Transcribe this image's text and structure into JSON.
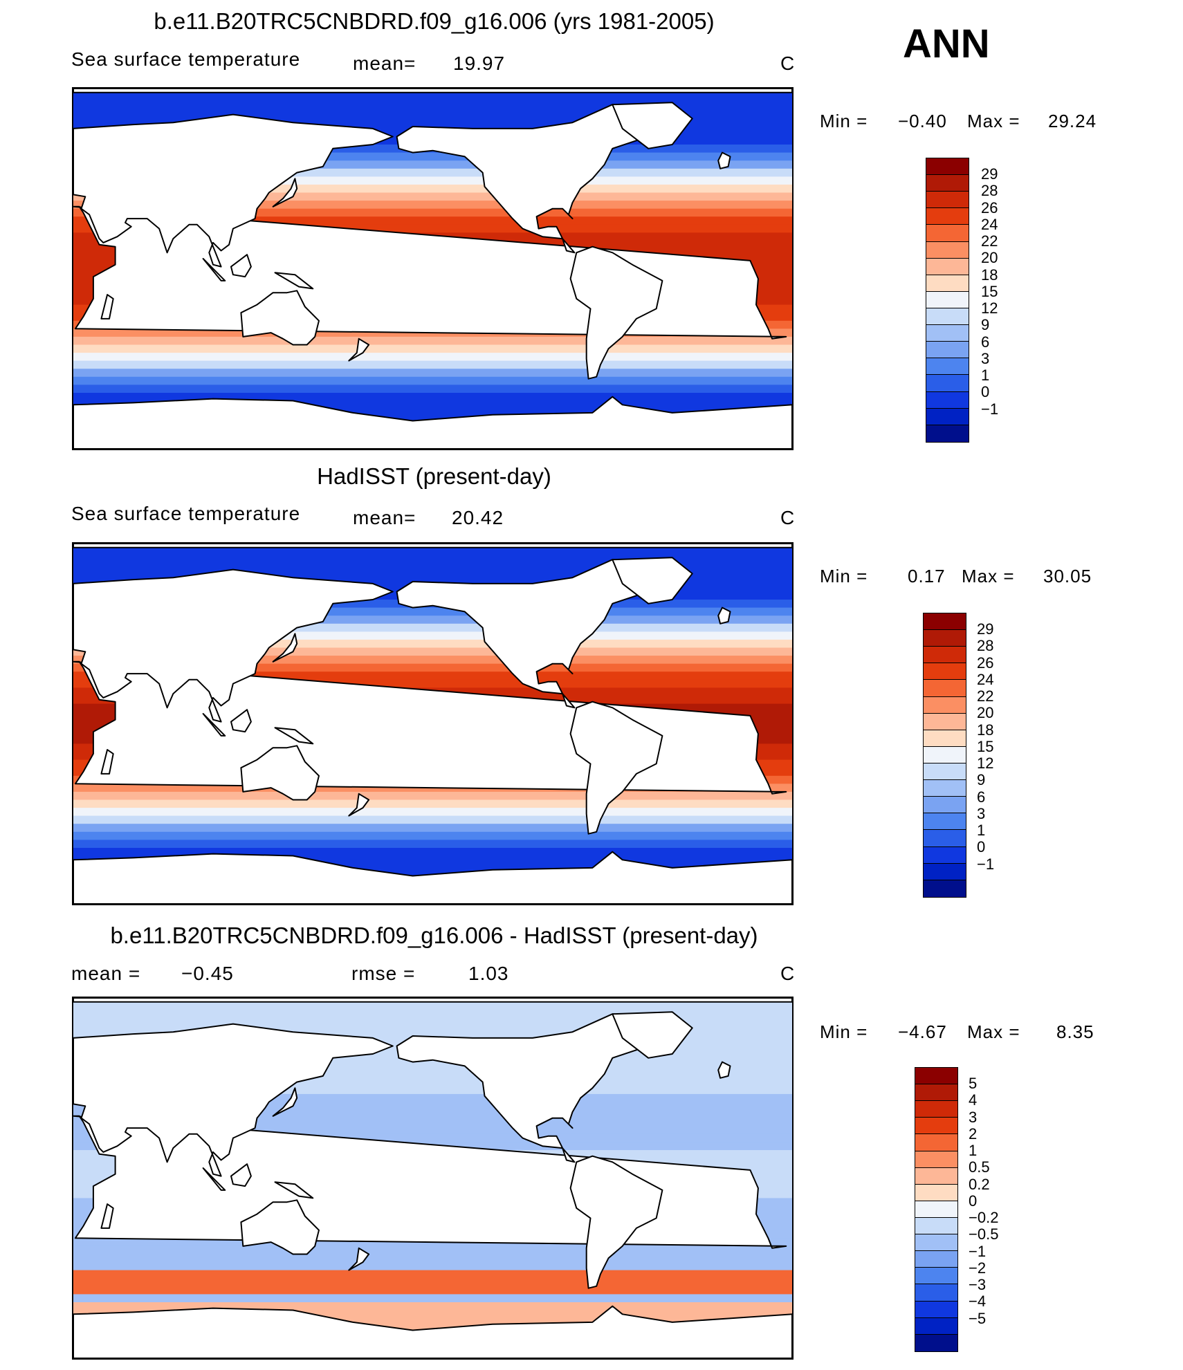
{
  "ann_label": "ANN",
  "panels": [
    {
      "title": "b.e11.B20TRC5CNBDRD.f09_g16.006 (yrs 1981-2005)",
      "left_label": "Sea surface temperature",
      "mid_label": "mean=",
      "mid_value": "19.97",
      "unit": "C",
      "min_label": "Min =",
      "min_value": "−0.40",
      "max_label": "Max =",
      "max_value": "29.24",
      "map_name": "model-sst-map",
      "levels": [
        "29",
        "28",
        "26",
        "24",
        "22",
        "20",
        "18",
        "15",
        "12",
        "9",
        "6",
        "3",
        "1",
        "0",
        "−1"
      ],
      "colors": [
        "#8b0000",
        "#b01a06",
        "#cf2a08",
        "#e43d0e",
        "#f46634",
        "#fb8f63",
        "#fdb797",
        "#fedcc2",
        "#f0f4fa",
        "#c8dcf8",
        "#a1c0f6",
        "#7aa3f2",
        "#4d84ef",
        "#2a5ee8",
        "#1038e0",
        "#0022c4",
        "#000f8c"
      ]
    },
    {
      "title": "HadISST (present-day)",
      "left_label": "Sea surface temperature",
      "mid_label": "mean=",
      "mid_value": "20.42",
      "unit": "C",
      "min_label": "Min =",
      "min_value": "0.17",
      "max_label": "Max =",
      "max_value": "30.05",
      "map_name": "obs-sst-map",
      "levels": [
        "29",
        "28",
        "26",
        "24",
        "22",
        "20",
        "18",
        "15",
        "12",
        "9",
        "6",
        "3",
        "1",
        "0",
        "−1"
      ],
      "colors": [
        "#8b0000",
        "#b01a06",
        "#cf2a08",
        "#e43d0e",
        "#f46634",
        "#fb8f63",
        "#fdb797",
        "#fedcc2",
        "#f0f4fa",
        "#c8dcf8",
        "#a1c0f6",
        "#7aa3f2",
        "#4d84ef",
        "#2a5ee8",
        "#1038e0",
        "#0022c4",
        "#000f8c"
      ]
    },
    {
      "title": "b.e11.B20TRC5CNBDRD.f09_g16.006 - HadISST (present-day)",
      "left_label": "mean =",
      "left_value": "−0.45",
      "mid_label": "rmse =",
      "mid_value": "1.03",
      "unit": "C",
      "min_label": "Min =",
      "min_value": "−4.67",
      "max_label": "Max =",
      "max_value": "8.35",
      "map_name": "difference-sst-map",
      "levels": [
        "5",
        "4",
        "3",
        "2",
        "1",
        "0.5",
        "0.2",
        "0",
        "−0.2",
        "−0.5",
        "−1",
        "−2",
        "−3",
        "−4",
        "−5"
      ],
      "colors": [
        "#8b0000",
        "#b01a06",
        "#cf2a08",
        "#e43d0e",
        "#f46634",
        "#fb8f63",
        "#fdb797",
        "#fedcc2",
        "#f0f4fa",
        "#c8dcf8",
        "#a1c0f6",
        "#7aa3f2",
        "#4d84ef",
        "#2a5ee8",
        "#1038e0",
        "#0022c4",
        "#000f8c"
      ]
    }
  ]
}
